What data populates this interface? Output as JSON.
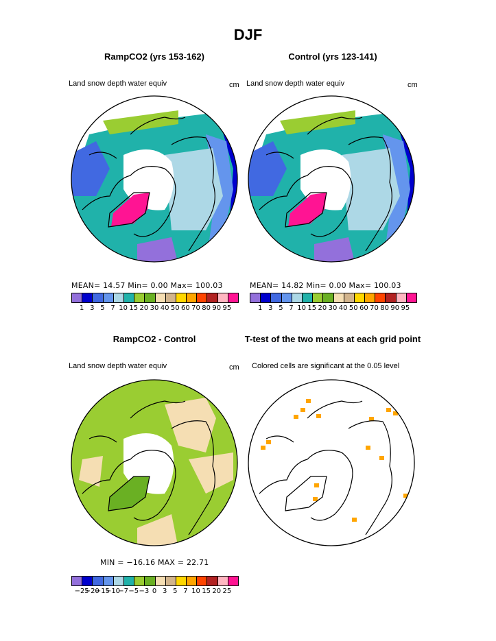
{
  "title": "DJF",
  "panels": [
    {
      "id": "p1",
      "title": "RampCO2 (yrs 153-162)",
      "subtitle": "Land snow depth water equiv",
      "unit": "cm",
      "stats": "MEAN=  14.57  Min=    0.00  Max= 100.03"
    },
    {
      "id": "p2",
      "title": "Control (yrs 123-141)",
      "subtitle": "Land snow depth water equiv",
      "unit": "cm",
      "stats": "MEAN=  14.82  Min=    0.00  Max= 100.03"
    },
    {
      "id": "p3",
      "title": "RampCO2 - Control",
      "subtitle": "Land snow depth water equiv",
      "unit": "cm",
      "stats": "MIN = −16.16  MAX =   22.71"
    },
    {
      "id": "p4",
      "title": "T-test of the two means at each grid point",
      "subtitle": "Colored cells are significant at the 0.05 level",
      "unit": "",
      "stats": ""
    }
  ],
  "chart_data": [
    {
      "type": "heatmap",
      "panel": "p1",
      "title": "RampCO2 (yrs 153-162)",
      "variable": "Land snow depth water equiv",
      "unit": "cm",
      "mean": 14.57,
      "min": 0.0,
      "max": 100.03,
      "levels": [
        1,
        3,
        5,
        7,
        10,
        15,
        20,
        30,
        40,
        50,
        60,
        70,
        80,
        90,
        95
      ],
      "colors": [
        "#9370db",
        "#0000cd",
        "#4169e1",
        "#6495ed",
        "#add8e6",
        "#20b2aa",
        "#9acd32",
        "#6ab023",
        "#f5deb3",
        "#d2b48c",
        "#ffd700",
        "#ffa500",
        "#ff4500",
        "#b22222",
        "#ffb6c1",
        "#ff1493"
      ]
    },
    {
      "type": "heatmap",
      "panel": "p2",
      "title": "Control (yrs 123-141)",
      "variable": "Land snow depth water equiv",
      "unit": "cm",
      "mean": 14.82,
      "min": 0.0,
      "max": 100.03,
      "levels": [
        1,
        3,
        5,
        7,
        10,
        15,
        20,
        30,
        40,
        50,
        60,
        70,
        80,
        90,
        95
      ],
      "colors": [
        "#9370db",
        "#0000cd",
        "#4169e1",
        "#6495ed",
        "#add8e6",
        "#20b2aa",
        "#9acd32",
        "#6ab023",
        "#f5deb3",
        "#d2b48c",
        "#ffd700",
        "#ffa500",
        "#ff4500",
        "#b22222",
        "#ffb6c1",
        "#ff1493"
      ]
    },
    {
      "type": "heatmap",
      "panel": "p3",
      "title": "RampCO2 - Control",
      "variable": "Land snow depth water equiv",
      "unit": "cm",
      "min": -16.16,
      "max": 22.71,
      "levels": [
        -25,
        -20,
        -15,
        -10,
        -7,
        -5,
        -3,
        0,
        3,
        5,
        7,
        10,
        15,
        20,
        25
      ],
      "colors": [
        "#9370db",
        "#0000cd",
        "#4169e1",
        "#6495ed",
        "#add8e6",
        "#20b2aa",
        "#9acd32",
        "#6ab023",
        "#f5deb3",
        "#d2b48c",
        "#ffd700",
        "#ffa500",
        "#ff4500",
        "#b22222",
        "#ffb6c1",
        "#ff1493"
      ]
    },
    {
      "type": "heatmap",
      "panel": "p4",
      "title": "T-test of the two means at each grid point",
      "note": "Colored cells are significant at the 0.05 level",
      "colors": [
        "#ffa500"
      ]
    }
  ]
}
